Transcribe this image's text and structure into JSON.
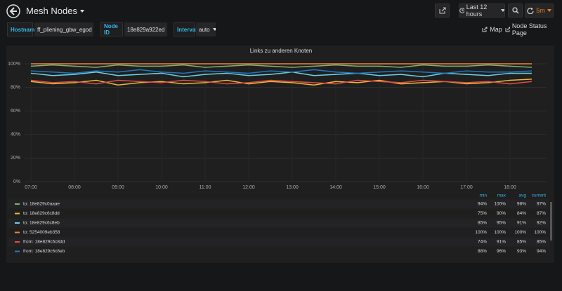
{
  "header": {
    "title": "Mesh Nodes",
    "time_range": "Last 12 hours",
    "refresh": "5m"
  },
  "variables": [
    {
      "label": "Hostname",
      "value": "ff_pliening_gbw_egod"
    },
    {
      "label": "Node ID",
      "value": "18e829a922ed"
    },
    {
      "label": "Interval",
      "value": "auto"
    }
  ],
  "links": [
    "Map",
    "Node Status Page"
  ],
  "chart_data": {
    "type": "line",
    "title": "Links zu anderen Knoten",
    "categories": [
      "07:00",
      null,
      "08:00",
      null,
      "09:00",
      null,
      "10:00",
      null,
      "11:00",
      null,
      "12:00",
      null,
      "13:00",
      null,
      "14:00",
      null,
      "15:00",
      null,
      "16:00",
      null,
      "17:00",
      null,
      "18:00",
      null
    ],
    "ylim": [
      0,
      100
    ],
    "yticks": [
      {
        "value": 0,
        "label": "0%"
      },
      {
        "value": 20,
        "label": "20%"
      },
      {
        "value": 40,
        "label": "40%"
      },
      {
        "value": 60,
        "label": "60%"
      },
      {
        "value": 80,
        "label": "80%"
      },
      {
        "value": 100,
        "label": "100%"
      }
    ],
    "grid": true,
    "legend_columns": [
      "min",
      "max",
      "avg",
      "current"
    ],
    "series": [
      {
        "name": "to: 18e829c0aaae",
        "color": "#7eb26d",
        "legend_values": [
          "94%",
          "100%",
          "98%",
          "97%"
        ],
        "values": [
          98,
          99,
          98,
          97,
          99,
          98,
          98,
          99,
          97,
          98,
          99,
          98,
          97,
          98,
          99,
          98,
          98,
          97,
          99,
          98,
          98,
          99,
          98,
          97
        ]
      },
      {
        "name": "to: 18e829c6c8dd",
        "color": "#eab839",
        "legend_values": [
          "75%",
          "90%",
          "84%",
          "87%"
        ],
        "values": [
          85,
          83,
          84,
          86,
          82,
          84,
          85,
          83,
          84,
          86,
          83,
          85,
          84,
          82,
          85,
          84,
          86,
          83,
          84,
          85,
          83,
          84,
          86,
          87
        ]
      },
      {
        "name": "to: 18e829c6c8eb",
        "color": "#6ed0e0",
        "legend_values": [
          "85%",
          "95%",
          "91%",
          "92%"
        ],
        "values": [
          92,
          90,
          91,
          93,
          90,
          91,
          92,
          89,
          91,
          92,
          90,
          91,
          93,
          90,
          91,
          92,
          90,
          91,
          89,
          92,
          91,
          90,
          92,
          92
        ]
      },
      {
        "name": "to: 5254009eb358",
        "color": "#ef843c",
        "legend_values": [
          "100%",
          "100%",
          "100%",
          "100%"
        ],
        "values": [
          100,
          100,
          100,
          100,
          100,
          100,
          100,
          100,
          100,
          100,
          100,
          100,
          100,
          100,
          100,
          100,
          100,
          100,
          100,
          100,
          100,
          100,
          100,
          100
        ]
      },
      {
        "name": "from: 18e829c6c8dd",
        "color": "#e24d42",
        "legend_values": [
          "74%",
          "91%",
          "85%",
          "85%"
        ],
        "values": [
          86,
          84,
          85,
          83,
          86,
          85,
          84,
          86,
          85,
          83,
          84,
          86,
          85,
          84,
          83,
          86,
          85,
          84,
          86,
          85,
          84,
          85,
          83,
          85
        ]
      },
      {
        "name": "from: 18e829c6c8eb",
        "color": "#1f78c1",
        "legend_values": [
          "88%",
          "96%",
          "93%",
          "94%"
        ],
        "values": [
          94,
          93,
          92,
          94,
          93,
          95,
          93,
          92,
          94,
          93,
          92,
          94,
          93,
          95,
          93,
          92,
          93,
          94,
          93,
          92,
          94,
          93,
          93,
          94
        ]
      }
    ]
  }
}
